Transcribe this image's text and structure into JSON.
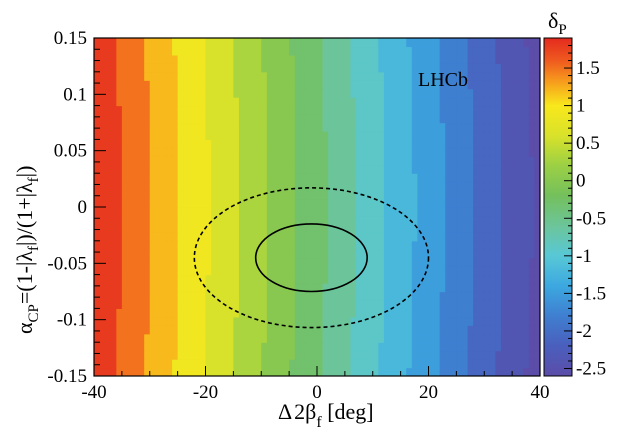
{
  "chart_data": {
    "type": "heatmap",
    "x": {
      "min": -40,
      "max": 40,
      "ticks": [
        -40,
        -20,
        0,
        20,
        40
      ],
      "tick_labels": [
        "-40",
        "-20",
        "0",
        "20",
        "40"
      ]
    },
    "y": {
      "min": -0.15,
      "max": 0.15,
      "ticks": [
        -0.15,
        -0.1,
        -0.05,
        0,
        0.05,
        0.1,
        0.15
      ],
      "tick_labels": [
        "-0.15",
        "-0.1",
        "-0.05",
        "0",
        "0.05",
        "0.1",
        "0.15"
      ]
    },
    "z": {
      "name": "δP",
      "min": -2.6,
      "max": 1.9,
      "ticks": [
        1.5,
        1,
        0.5,
        0,
        -0.5,
        -1,
        -1.5,
        -2,
        -2.5
      ],
      "tick_labels": [
        "1.5",
        "1",
        "0.5",
        "0",
        "-0.5",
        "-1",
        "-1.5",
        "-2",
        "-2.5"
      ]
    },
    "colormap": [
      {
        "z": -2.6,
        "color": "#5b4da8"
      },
      {
        "z": -2.2,
        "color": "#4a5fbd"
      },
      {
        "z": -1.8,
        "color": "#3f7fd0"
      },
      {
        "z": -1.4,
        "color": "#3ca8e0"
      },
      {
        "z": -1.0,
        "color": "#58c8d6"
      },
      {
        "z": -0.6,
        "color": "#6cc59a"
      },
      {
        "z": -0.2,
        "color": "#74c05c"
      },
      {
        "z": 0.2,
        "color": "#9bd044"
      },
      {
        "z": 0.6,
        "color": "#d9e22a"
      },
      {
        "z": 1.0,
        "color": "#f8e81c"
      },
      {
        "z": 1.3,
        "color": "#f7a11c"
      },
      {
        "z": 1.6,
        "color": "#ef5a1f"
      },
      {
        "z": 1.9,
        "color": "#e42a1f"
      }
    ],
    "contours": [
      {
        "center": [
          -1,
          -0.045
        ],
        "semi_axes": [
          10,
          0.03
        ],
        "style": "solid"
      },
      {
        "center": [
          -1,
          -0.045
        ],
        "semi_axes": [
          21,
          0.062
        ],
        "style": "dashed"
      }
    ],
    "annotation": "LHCb",
    "xlabel": {
      "lead": "Δ",
      "main": "2β",
      "sub": "f",
      "unit": " [deg]"
    },
    "ylabel": {
      "alpha": "α",
      "cp": "CP",
      "expr": "=(1-|λ",
      "f1": "f",
      "mid": "|)/(1+|λ",
      "f2": "f",
      "close": "|)"
    },
    "cbar_label": {
      "main": "δ",
      "sub": "P"
    }
  }
}
